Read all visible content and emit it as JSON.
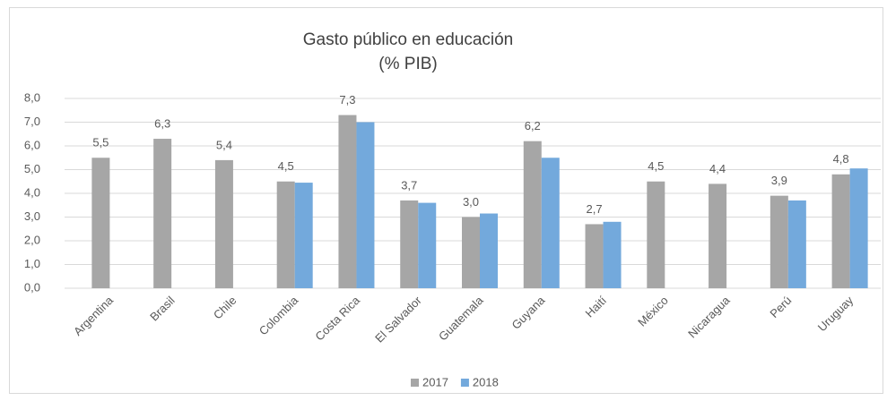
{
  "chart_data": {
    "type": "bar",
    "title": "Gasto público en educación",
    "subtitle": "(% PIB)",
    "categories": [
      "Argentina",
      "Brasil",
      "Chile",
      "Colombia",
      "Costa Rica",
      "El Salvador",
      "Guatemala",
      "Guyana",
      "Haití",
      "México",
      "Nicaragua",
      "Perú",
      "Uruguay"
    ],
    "series": [
      {
        "name": "2017",
        "color": "#a6a6a6",
        "values": [
          5.5,
          6.3,
          5.4,
          4.5,
          7.3,
          3.7,
          3.0,
          6.2,
          2.7,
          4.5,
          4.4,
          3.9,
          4.8
        ],
        "value_labels": [
          "5,5",
          "6,3",
          "5,4",
          "4,5",
          "7,3",
          "3,7",
          "3,0",
          "6,2",
          "2,7",
          "4,5",
          "4,4",
          "3,9",
          "4,8"
        ]
      },
      {
        "name": "2018",
        "color": "#73a9dc",
        "values": [
          null,
          null,
          null,
          4.45,
          7.0,
          3.6,
          3.15,
          5.5,
          2.8,
          null,
          null,
          3.7,
          5.05
        ]
      }
    ],
    "ylim": [
      0,
      8
    ],
    "yticks": [
      {
        "value": 0,
        "label": "0,0"
      },
      {
        "value": 1,
        "label": "1,0"
      },
      {
        "value": 2,
        "label": "2,0"
      },
      {
        "value": 3,
        "label": "3,0"
      },
      {
        "value": 4,
        "label": "4,0"
      },
      {
        "value": 5,
        "label": "5,0"
      },
      {
        "value": 6,
        "label": "6,0"
      },
      {
        "value": 7,
        "label": "7,0"
      },
      {
        "value": 8,
        "label": "8,0"
      }
    ],
    "grid": true,
    "legend": "bottom"
  }
}
